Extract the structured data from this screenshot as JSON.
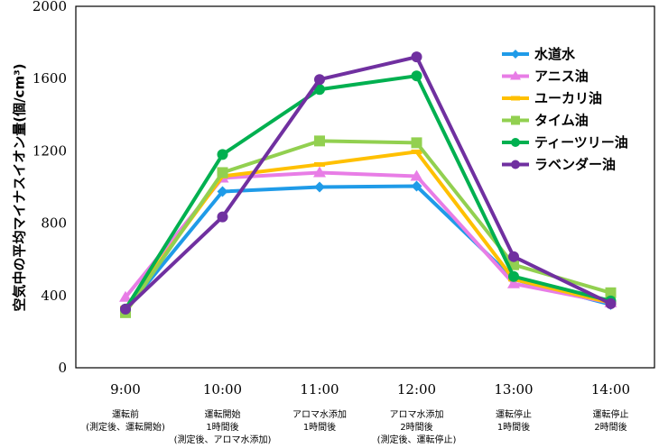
{
  "chart_data": {
    "type": "line",
    "ylabel": "空気中の平均マイナスイオン量(個/cm³)",
    "ylim": [
      0,
      2000
    ],
    "yticks": [
      0,
      400,
      800,
      1200,
      1600,
      2000
    ],
    "grid": false,
    "legend_position": "top-right",
    "categories": [
      "9:00",
      "10:00",
      "11:00",
      "12:00",
      "13:00",
      "14:00"
    ],
    "category_notes": [
      [
        "運転前",
        "(測定後、運転開始)"
      ],
      [
        "運転開始",
        "1時間後",
        "(測定後、アロマ水添加)"
      ],
      [
        "アロマ水添加",
        "1時間後"
      ],
      [
        "アロマ水添加",
        "2時間後",
        "(測定後、運転停止)"
      ],
      [
        "運転停止",
        "1時間後"
      ],
      [
        "運転停止",
        "2時間後"
      ]
    ],
    "series": [
      {
        "name": "水道水",
        "color": "#1F9BE8",
        "marker": "diamond",
        "values": [
          320,
          975,
          1000,
          1005,
          490,
          350
        ]
      },
      {
        "name": "アニス油",
        "color": "#E87DE6",
        "marker": "triangle",
        "values": [
          390,
          1050,
          1080,
          1060,
          465,
          360
        ]
      },
      {
        "name": "ユーカリ油",
        "color": "#FFC000",
        "marker": "dash",
        "values": [
          330,
          1060,
          1125,
          1195,
          490,
          360
        ]
      },
      {
        "name": "タイム油",
        "color": "#92D050",
        "marker": "square",
        "values": [
          305,
          1080,
          1255,
          1245,
          570,
          415
        ]
      },
      {
        "name": "ティーツリー油",
        "color": "#00B050",
        "marker": "circle",
        "values": [
          325,
          1180,
          1540,
          1615,
          505,
          370
        ]
      },
      {
        "name": "ラベンダー油",
        "color": "#7030A0",
        "marker": "circle",
        "values": [
          325,
          835,
          1595,
          1720,
          615,
          355
        ]
      }
    ]
  }
}
